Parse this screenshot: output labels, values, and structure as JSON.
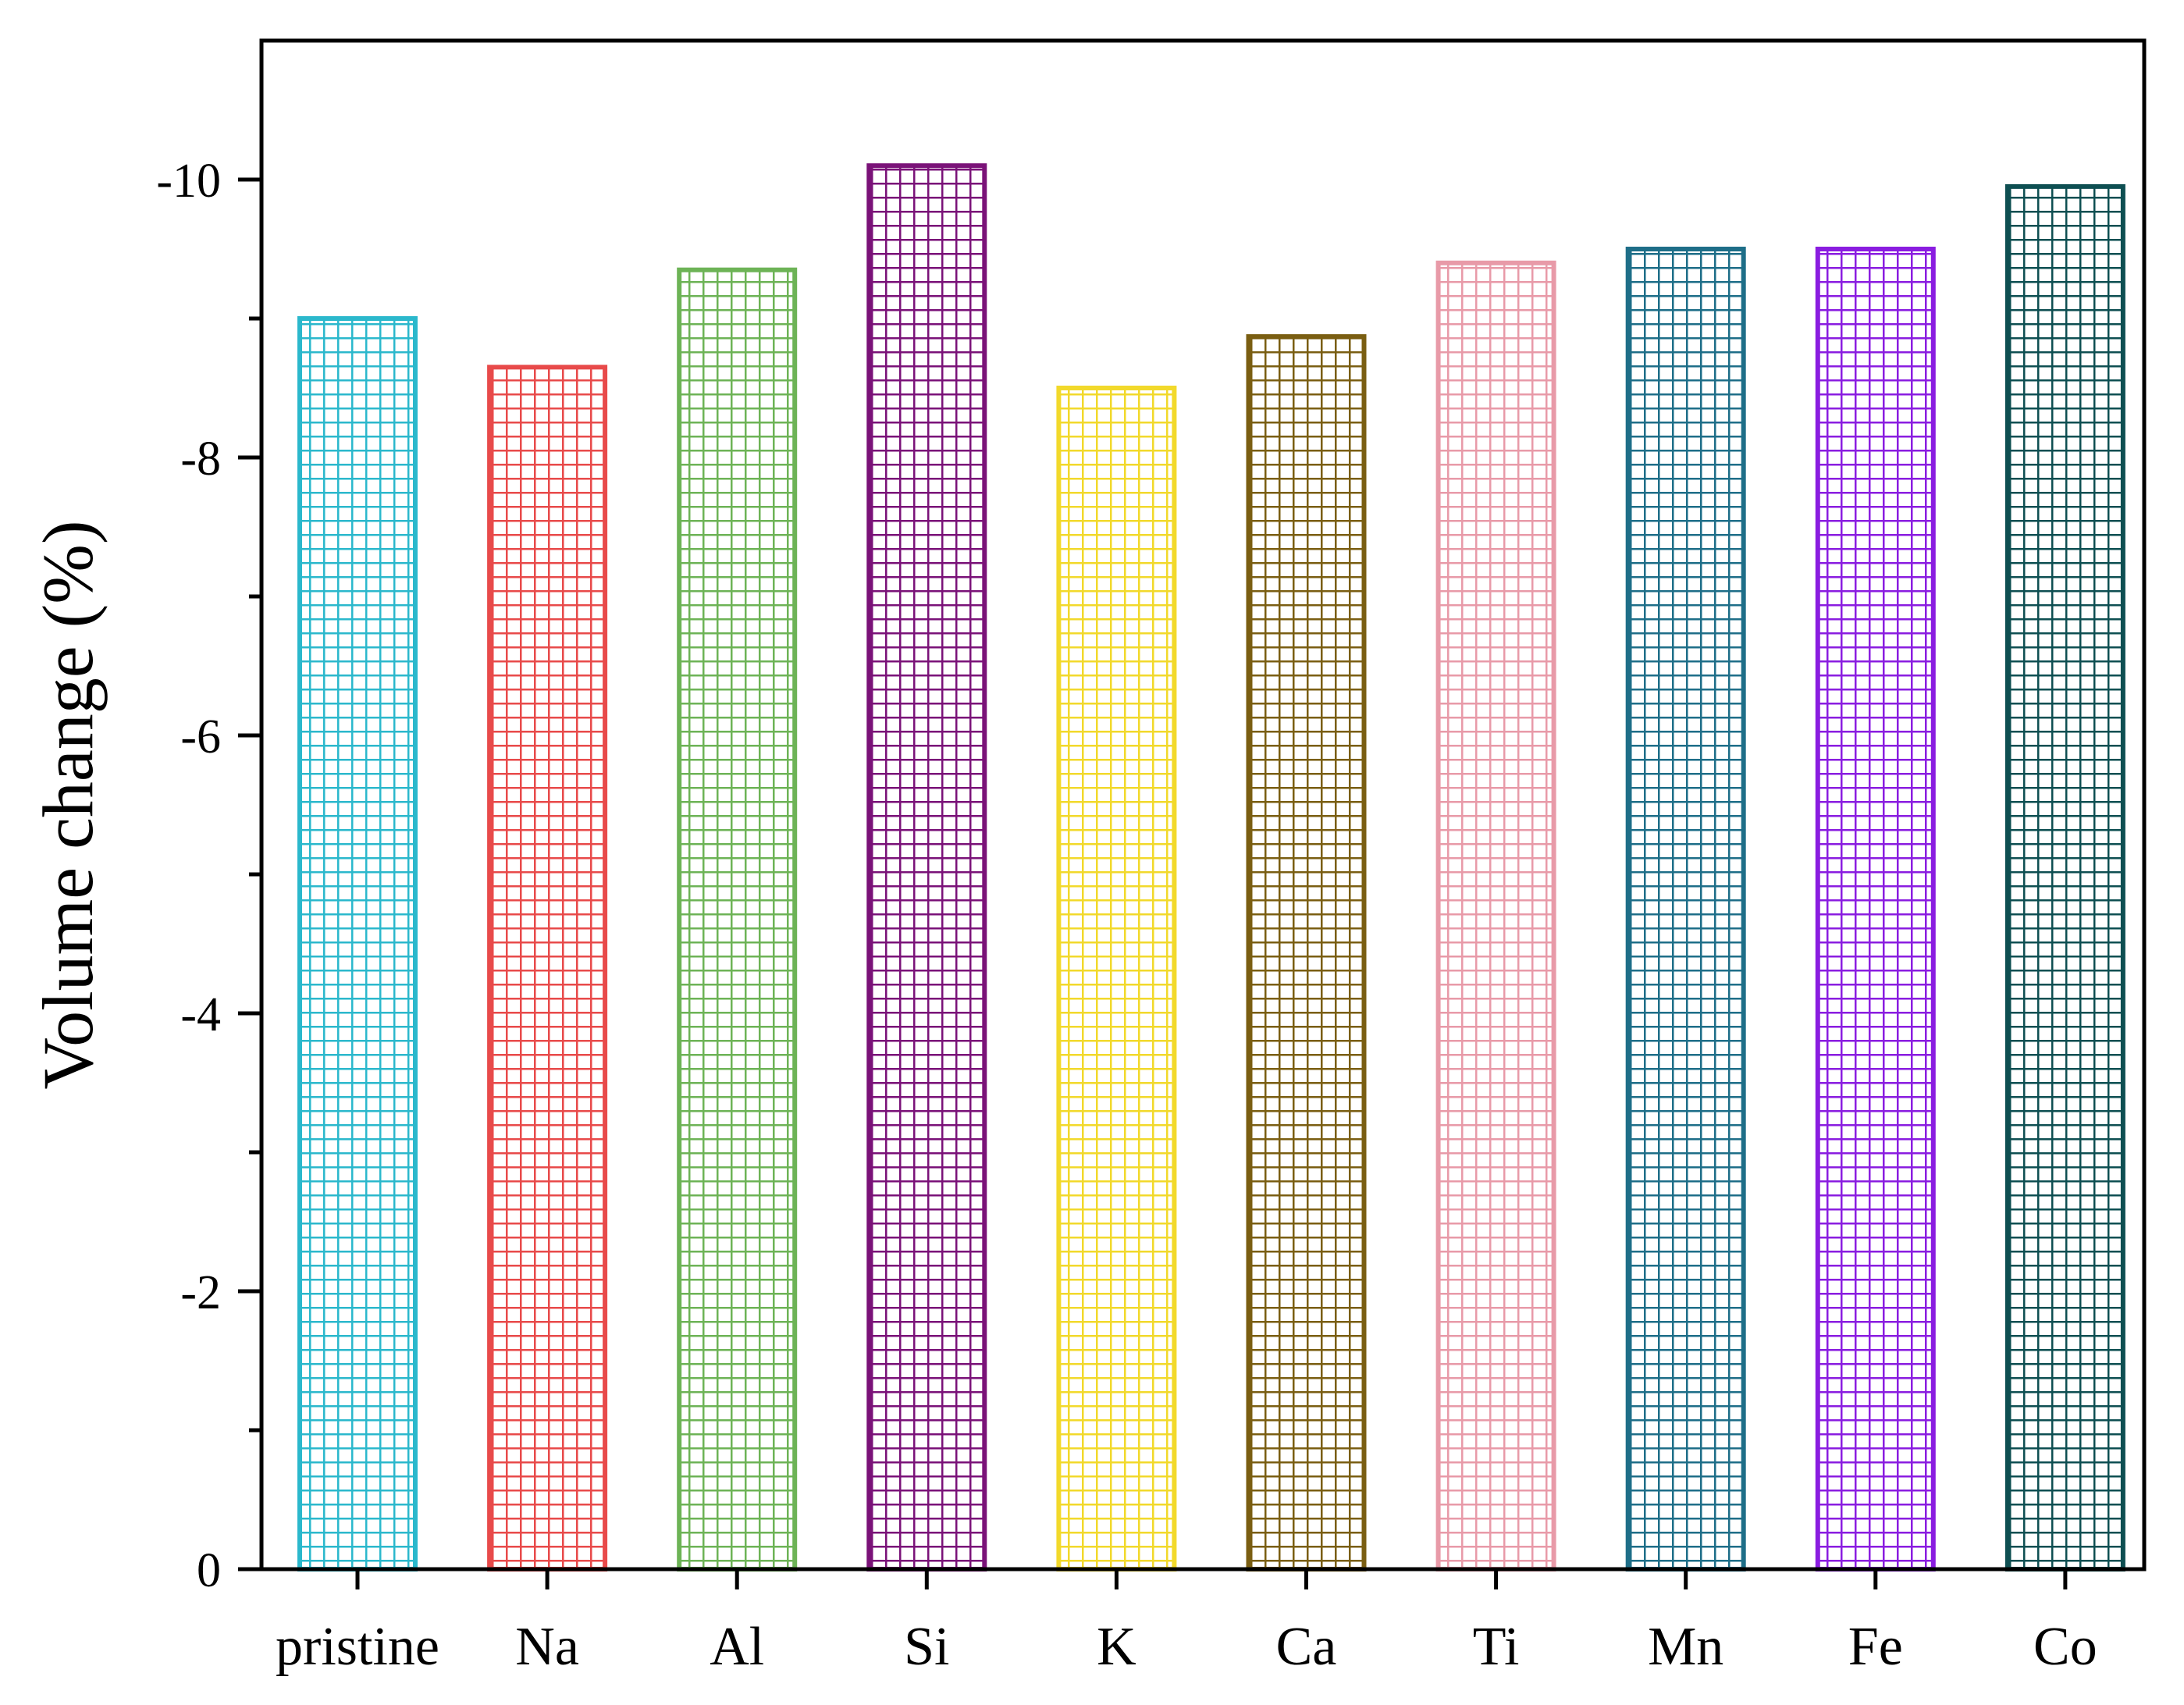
{
  "chart_data": {
    "type": "bar",
    "title": "",
    "xlabel": "",
    "ylabel": "Volume change (%)",
    "ylim": [
      0,
      -11
    ],
    "y_axis_inverted": true,
    "yticks": [
      0,
      -2,
      -4,
      -6,
      -8,
      -10
    ],
    "ytick_labels": [
      "0",
      "-2",
      "-4",
      "-6",
      "-8",
      "-10"
    ],
    "categories": [
      "pristine",
      "Na",
      "Al",
      "Si",
      "K",
      "Ca",
      "Ti",
      "Mn",
      "Fe",
      "Co"
    ],
    "values": [
      -9.0,
      -8.65,
      -9.35,
      -10.1,
      -8.5,
      -8.87,
      -9.4,
      -9.5,
      -9.5,
      -9.95
    ],
    "colors": [
      "#2bb8cc",
      "#e84a4a",
      "#6db356",
      "#7a1278",
      "#f2d92b",
      "#7a5e12",
      "#e89aa8",
      "#1e6e88",
      "#8a1de0",
      "#0e4f52"
    ],
    "fill_pattern": "grid-hatch",
    "grid": false,
    "legend": "none"
  }
}
